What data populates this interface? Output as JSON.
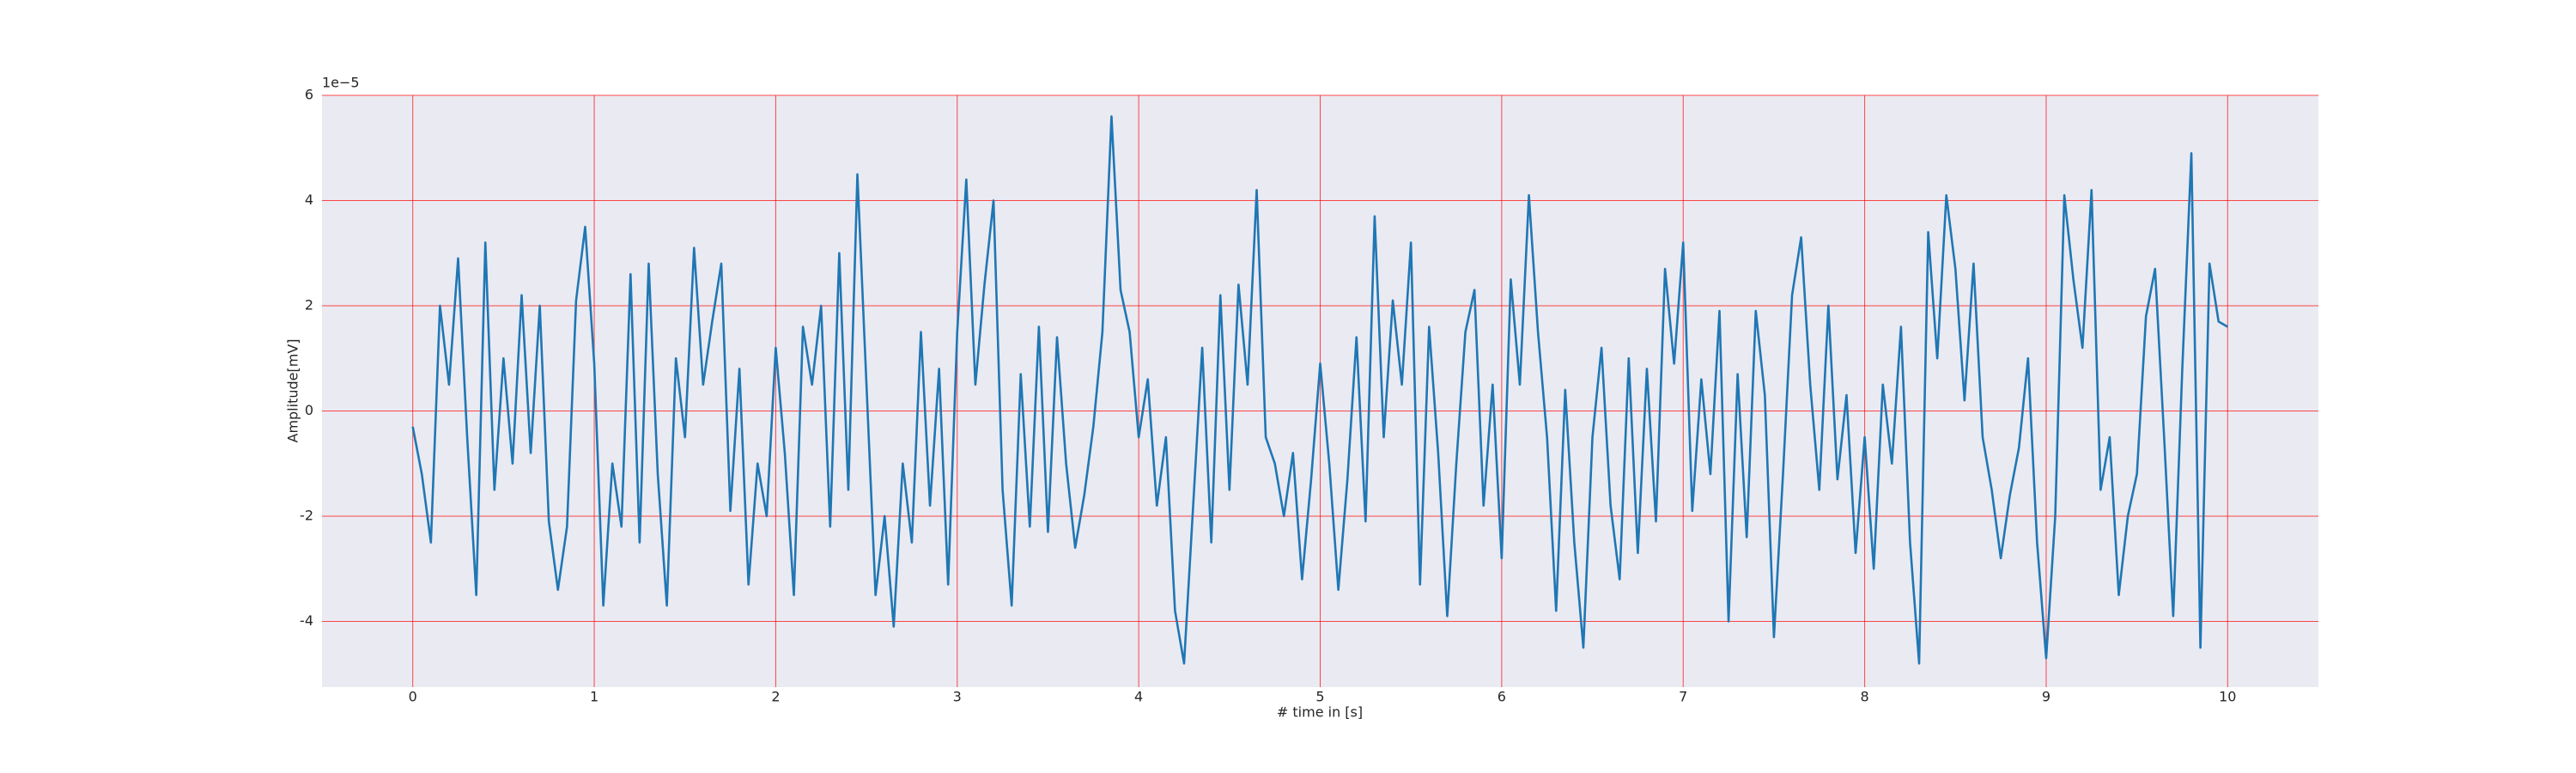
{
  "chart_data": {
    "type": "line",
    "xlabel": "# time in [s]",
    "ylabel": "Amplitude[mV]",
    "y_offset_label": "1e−5",
    "x": [
      0,
      0.05,
      0.1,
      0.15,
      0.2,
      0.25,
      0.3,
      0.35,
      0.4,
      0.45,
      0.5,
      0.55,
      0.6,
      0.65,
      0.7,
      0.75,
      0.8,
      0.85,
      0.9,
      0.95,
      1,
      1.05,
      1.1,
      1.15,
      1.2,
      1.25,
      1.3,
      1.35,
      1.4,
      1.45,
      1.5,
      1.55,
      1.6,
      1.65,
      1.7,
      1.75,
      1.8,
      1.85,
      1.9,
      1.95,
      2,
      2.05,
      2.1,
      2.15,
      2.2,
      2.25,
      2.3,
      2.35,
      2.4,
      2.45,
      2.5,
      2.55,
      2.6,
      2.65,
      2.7,
      2.75,
      2.8,
      2.85,
      2.9,
      2.95,
      3,
      3.05,
      3.1,
      3.15,
      3.2,
      3.25,
      3.3,
      3.35,
      3.4,
      3.45,
      3.5,
      3.55,
      3.6,
      3.65,
      3.7,
      3.75,
      3.8,
      3.85,
      3.9,
      3.95,
      4,
      4.05,
      4.1,
      4.15,
      4.2,
      4.25,
      4.3,
      4.35,
      4.4,
      4.45,
      4.5,
      4.55,
      4.6,
      4.65,
      4.7,
      4.75,
      4.8,
      4.85,
      4.9,
      4.95,
      5,
      5.05,
      5.1,
      5.15,
      5.2,
      5.25,
      5.3,
      5.35,
      5.4,
      5.45,
      5.5,
      5.55,
      5.6,
      5.65,
      5.7,
      5.75,
      5.8,
      5.85,
      5.9,
      5.95,
      6,
      6.05,
      6.1,
      6.15,
      6.2,
      6.25,
      6.3,
      6.35,
      6.4,
      6.45,
      6.5,
      6.55,
      6.6,
      6.65,
      6.7,
      6.75,
      6.8,
      6.85,
      6.9,
      6.95,
      7,
      7.05,
      7.1,
      7.15,
      7.2,
      7.25,
      7.3,
      7.35,
      7.4,
      7.45,
      7.5,
      7.55,
      7.6,
      7.65,
      7.7,
      7.75,
      7.8,
      7.85,
      7.9,
      7.95,
      8,
      8.05,
      8.1,
      8.15,
      8.2,
      8.25,
      8.3,
      8.35,
      8.4,
      8.45,
      8.5,
      8.55,
      8.6,
      8.65,
      8.7,
      8.75,
      8.8,
      8.85,
      8.9,
      8.95,
      9,
      9.05,
      9.1,
      9.15,
      9.2,
      9.25,
      9.3,
      9.35,
      9.4,
      9.45,
      9.5,
      9.55,
      9.6,
      9.65,
      9.7,
      9.75,
      9.8,
      9.85,
      9.9,
      9.95,
      10
    ],
    "series": [
      {
        "color": "#1f77b4",
        "values": [
          -0.3,
          -1.2,
          -2.5,
          2.0,
          0.5,
          2.9,
          -0.5,
          -3.5,
          3.2,
          -1.5,
          1.0,
          -1.0,
          2.2,
          -0.8,
          2.0,
          -2.1,
          -3.4,
          -2.2,
          2.1,
          3.5,
          0.9,
          -3.7,
          -1.0,
          -2.2,
          2.6,
          -2.5,
          2.8,
          -1.2,
          -3.7,
          1.0,
          -0.5,
          3.1,
          0.5,
          1.7,
          2.8,
          -1.9,
          0.8,
          -3.3,
          -1.0,
          -2.0,
          1.2,
          -0.8,
          -3.5,
          1.6,
          0.5,
          2.0,
          -2.2,
          3.0,
          -1.5,
          4.5,
          0.5,
          -3.5,
          -2.0,
          -4.1,
          -1.0,
          -2.5,
          1.5,
          -1.8,
          0.8,
          -3.3,
          1.5,
          4.4,
          0.5,
          2.4,
          4.0,
          -1.5,
          -3.7,
          0.7,
          -2.2,
          1.6,
          -2.3,
          1.4,
          -1.0,
          -2.6,
          -1.6,
          -0.3,
          1.5,
          5.6,
          2.3,
          1.5,
          -0.5,
          0.6,
          -1.8,
          -0.5,
          -3.8,
          -4.8,
          -1.8,
          1.2,
          -2.5,
          2.2,
          -1.5,
          2.4,
          0.5,
          4.2,
          -0.5,
          -1.0,
          -2.0,
          -0.8,
          -3.2,
          -1.3,
          0.9,
          -1.0,
          -3.4,
          -1.3,
          1.4,
          -2.1,
          3.7,
          -0.5,
          2.1,
          0.5,
          3.2,
          -3.3,
          1.6,
          -0.8,
          -3.9,
          -1.0,
          1.5,
          2.3,
          -1.8,
          0.5,
          -2.8,
          2.5,
          0.5,
          4.1,
          1.5,
          -0.5,
          -3.8,
          0.4,
          -2.5,
          -4.5,
          -0.5,
          1.2,
          -1.8,
          -3.2,
          1.0,
          -2.7,
          0.8,
          -2.1,
          2.7,
          0.9,
          3.2,
          -1.9,
          0.6,
          -1.2,
          1.9,
          -4.0,
          0.7,
          -2.4,
          1.9,
          0.3,
          -4.3,
          -1.2,
          2.2,
          3.3,
          0.5,
          -1.5,
          2.0,
          -1.3,
          0.3,
          -2.7,
          -0.5,
          -3.0,
          0.5,
          -1.0,
          1.6,
          -2.5,
          -4.8,
          3.4,
          1.0,
          4.1,
          2.7,
          0.2,
          2.8,
          -0.5,
          -1.5,
          -2.8,
          -1.6,
          -0.7,
          1.0,
          -2.5,
          -4.7,
          -2.0,
          4.1,
          2.5,
          1.2,
          4.2,
          -1.5,
          -0.5,
          -3.5,
          -2.0,
          -1.2,
          1.8,
          2.7,
          -0.5,
          -3.9,
          0.8,
          4.9,
          -4.5,
          2.8,
          1.7,
          1.6
        ]
      }
    ],
    "xlim": [
      -0.5,
      10.5
    ],
    "ylim": [
      -5.25,
      6
    ],
    "xticks": [
      0,
      1,
      2,
      3,
      4,
      5,
      6,
      7,
      8,
      9,
      10
    ],
    "yticks": [
      -4,
      -2,
      0,
      2,
      4,
      6
    ],
    "grid": true,
    "grid_color": "#ff0000",
    "background": "#eaeaf2"
  }
}
